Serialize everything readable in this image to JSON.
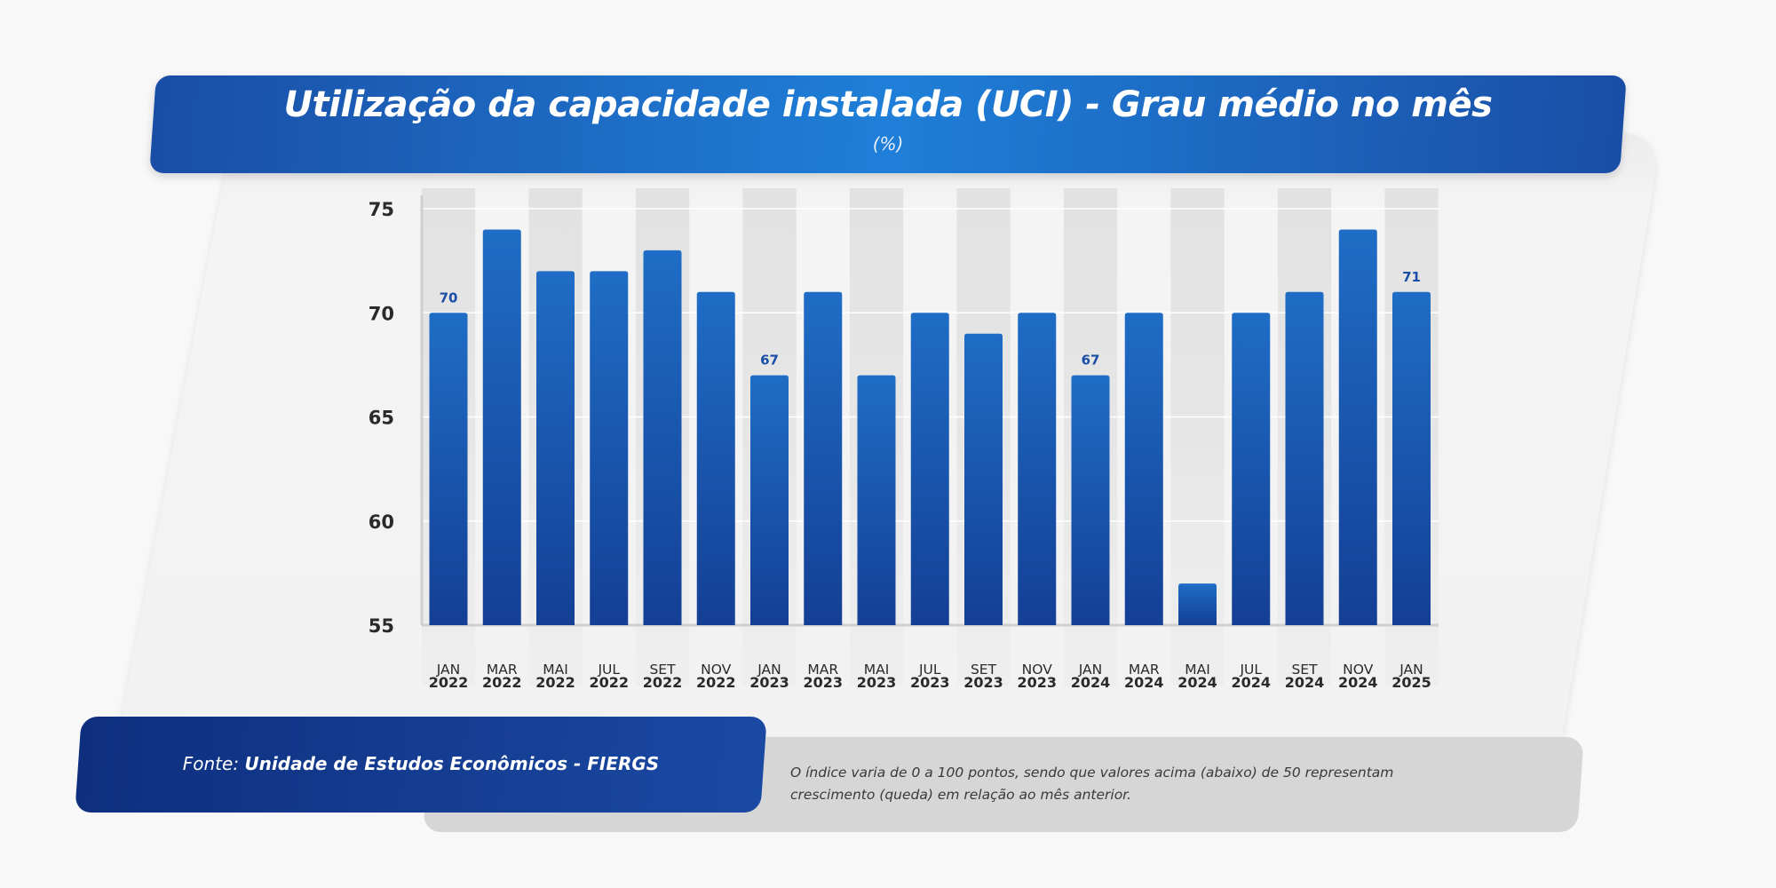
{
  "header": {
    "title": "Utilização da capacidade instalada (UCI) - Grau médio no mês",
    "subtitle": "(%)"
  },
  "footer": {
    "source_label": "Fonte:",
    "source_value": "Unidade de Estudos Econômicos - FIERGS",
    "note": "O índice varia de 0 a 100 pontos, sendo que valores acima (abaixo) de 50 representam crescimento (queda) em relação ao mês anterior."
  },
  "chart_data": {
    "type": "bar",
    "title": "Utilização da capacidade instalada (UCI) - Grau médio no mês",
    "subtitle": "(%)",
    "xlabel": "",
    "ylabel": "",
    "ylim": [
      55,
      75
    ],
    "yticks": [
      55,
      60,
      65,
      70,
      75
    ],
    "grid": true,
    "categories": [
      [
        "JAN",
        "2022"
      ],
      [
        "MAR",
        "2022"
      ],
      [
        "MAI",
        "2022"
      ],
      [
        "JUL",
        "2022"
      ],
      [
        "SET",
        "2022"
      ],
      [
        "NOV",
        "2022"
      ],
      [
        "JAN",
        "2023"
      ],
      [
        "MAR",
        "2023"
      ],
      [
        "MAI",
        "2023"
      ],
      [
        "JUL",
        "2023"
      ],
      [
        "SET",
        "2023"
      ],
      [
        "NOV",
        "2023"
      ],
      [
        "JAN",
        "2024"
      ],
      [
        "MAR",
        "2024"
      ],
      [
        "MAI",
        "2024"
      ],
      [
        "JUL",
        "2024"
      ],
      [
        "SET",
        "2024"
      ],
      [
        "NOV",
        "2024"
      ],
      [
        "JAN",
        "2025"
      ]
    ],
    "values": [
      70,
      74,
      72,
      72,
      73,
      71,
      67,
      71,
      67,
      70,
      69,
      70,
      67,
      70,
      57,
      70,
      71,
      74,
      71
    ],
    "data_labels": [
      {
        "index": 0,
        "text": "70"
      },
      {
        "index": 6,
        "text": "67"
      },
      {
        "index": 12,
        "text": "67"
      },
      {
        "index": 18,
        "text": "71"
      }
    ],
    "colors": {
      "bar_top": "#1f6dc6",
      "bar_bottom": "#143f95",
      "label": "#1a4ea6",
      "tick": "#2a2a2a"
    }
  }
}
